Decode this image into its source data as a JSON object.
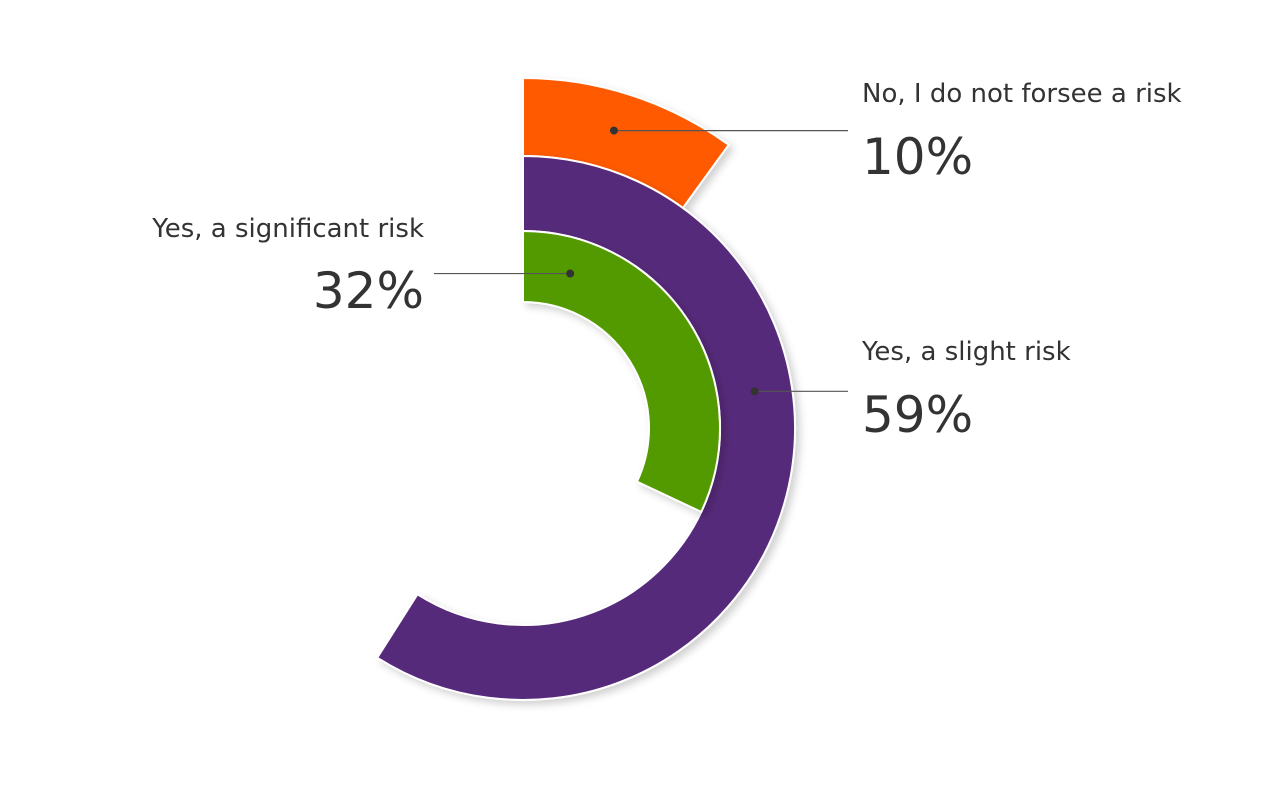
{
  "chart_data": {
    "type": "radial_bar",
    "categories": [
      "No, I do not forsee a risk",
      "Yes, a slight risk",
      "Yes, a significant risk"
    ],
    "values": [
      10,
      59,
      32
    ],
    "value_labels": [
      "10%",
      "59%",
      "32%"
    ],
    "colors": [
      "#ff5a00",
      "#572a7a",
      "#529a00"
    ]
  }
}
